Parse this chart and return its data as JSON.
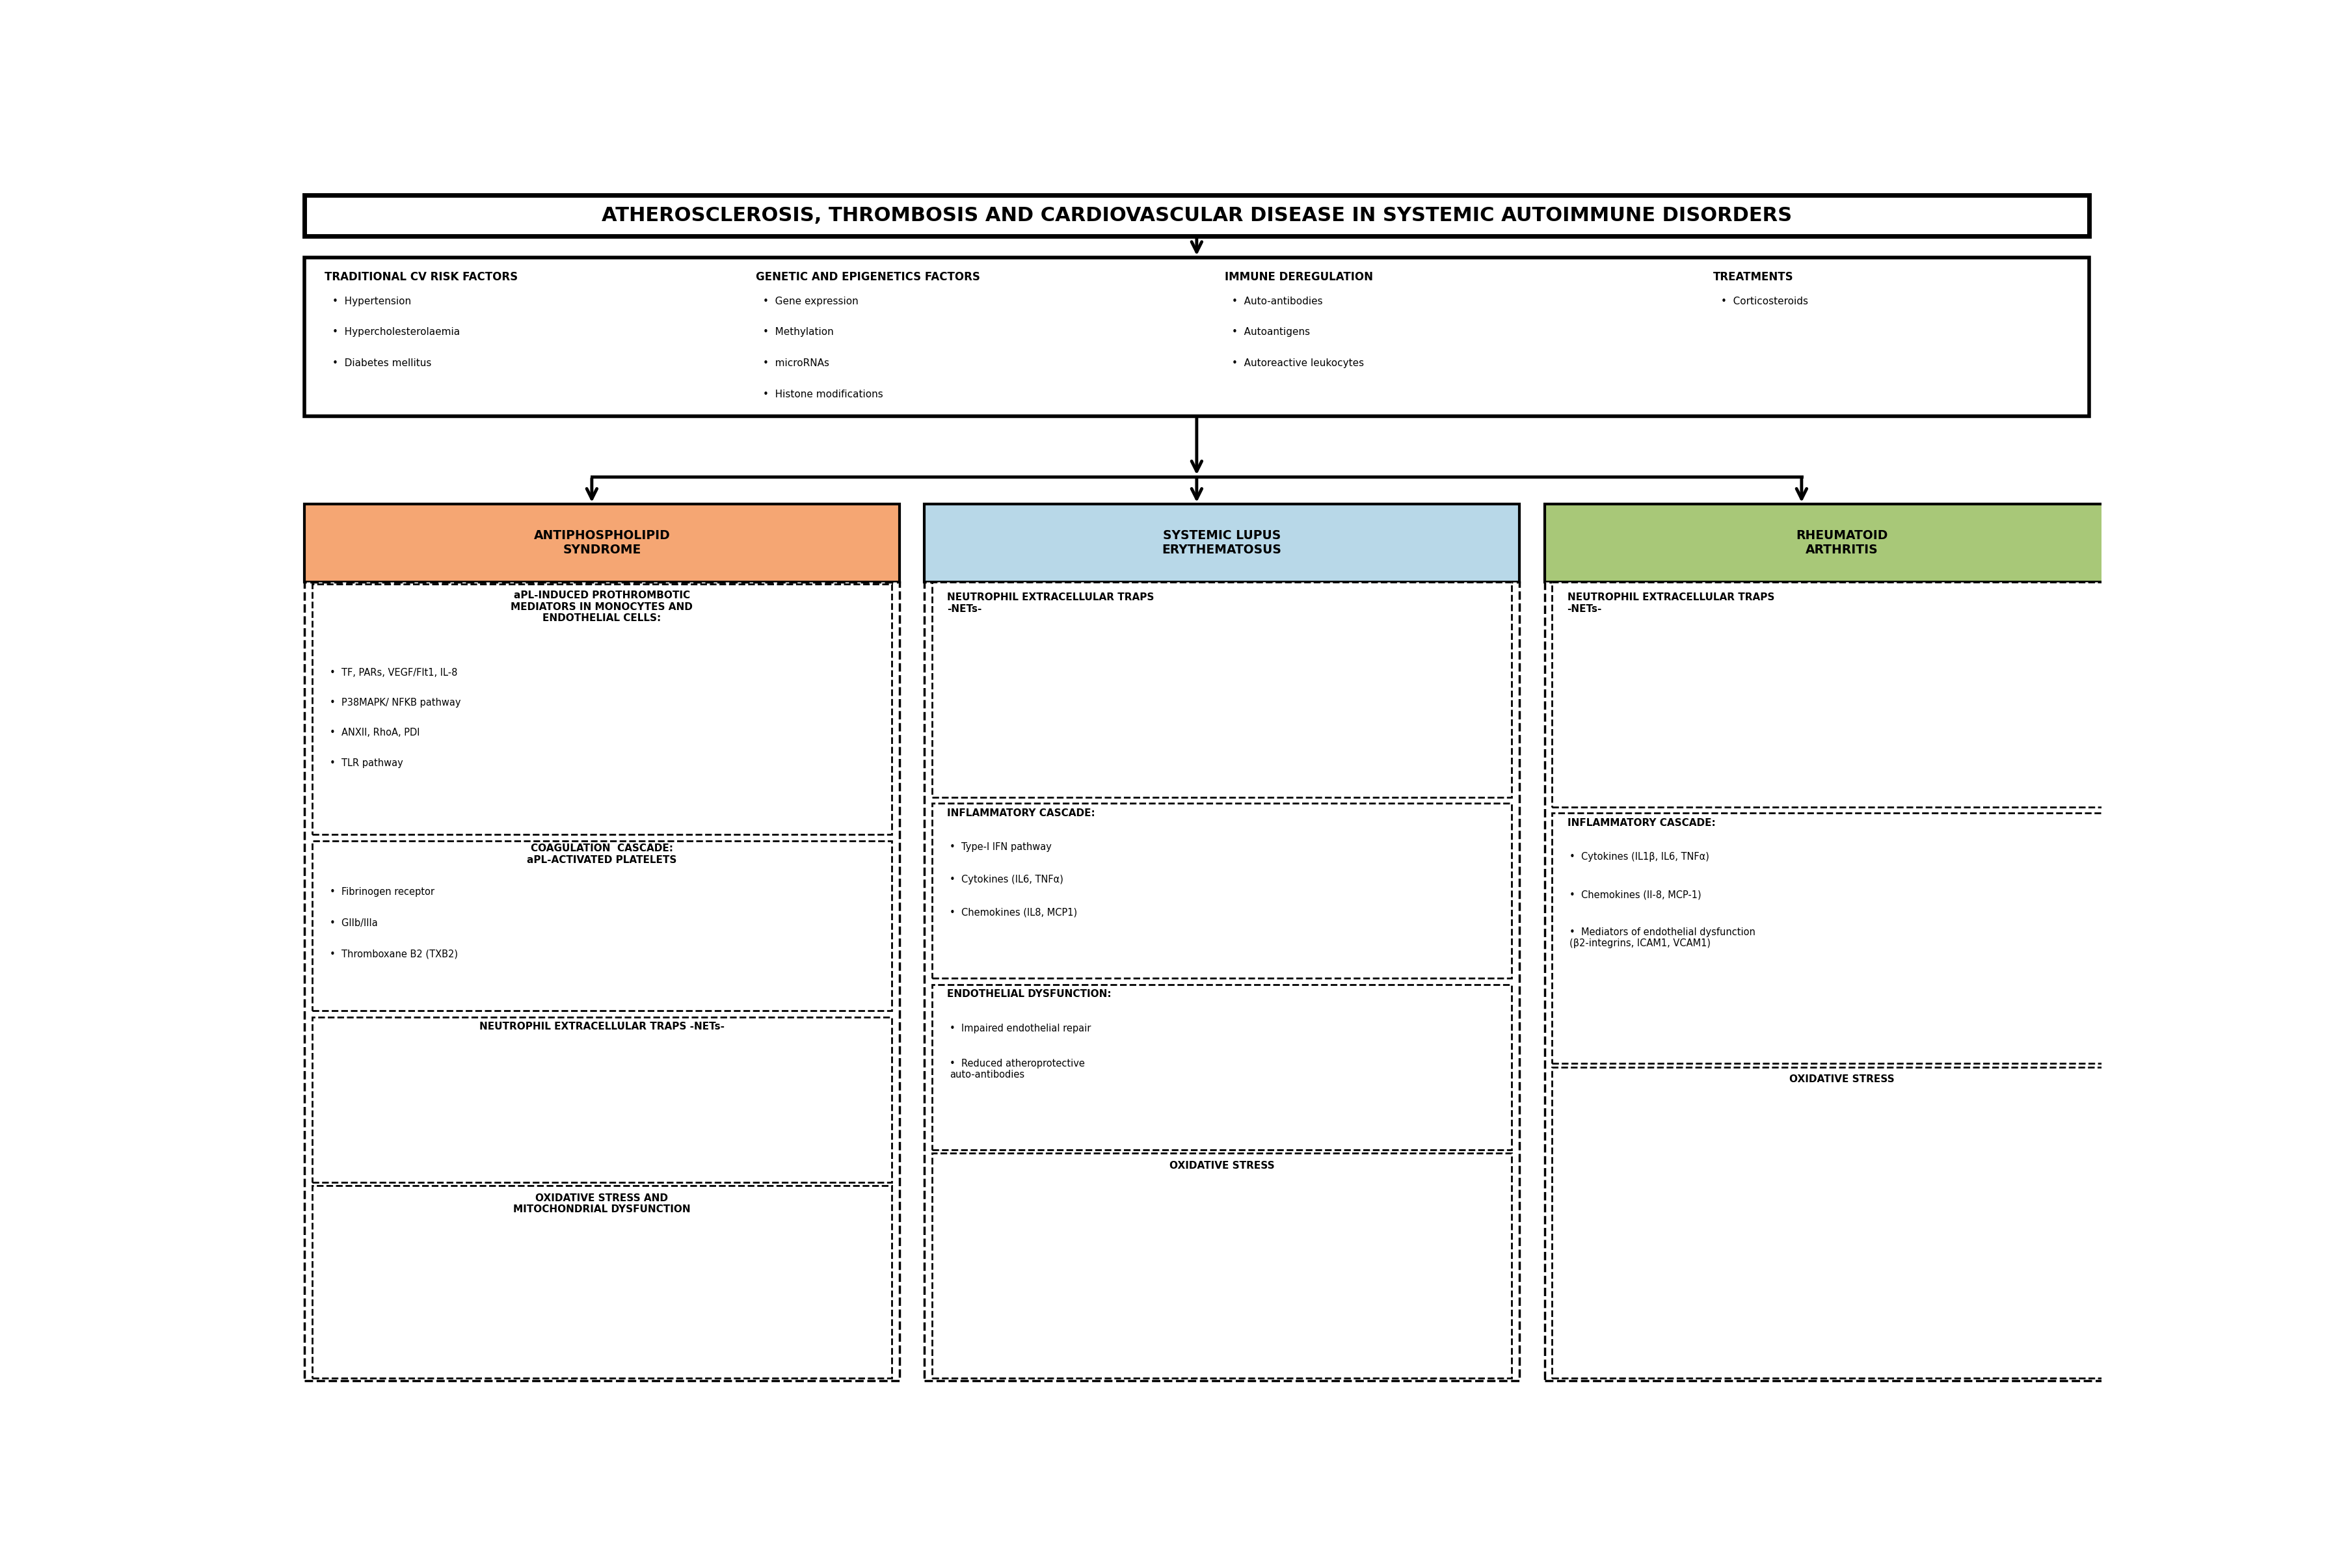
{
  "title": "ATHEROSCLEROSIS, THROMBOSIS AND CARDIOVASCULAR DISEASE IN SYSTEMIC AUTOIMMUNE DISORDERS",
  "bg_color": "#ffffff",
  "top_sections": [
    {
      "header": "TRADITIONAL CV RISK FACTORS",
      "items": [
        "Hypertension",
        "Hypercholesterolaemia",
        "Diabetes mellitus"
      ]
    },
    {
      "header": "GENETIC AND EPIGENETICS FACTORS",
      "items": [
        "Gene expression",
        "Methylation",
        "microRNAs",
        "Histone modifications"
      ]
    },
    {
      "header": "IMMUNE DEREGULATION",
      "items": [
        "Auto-antibodies",
        "Autoantigens",
        "Autoreactive leukocytes"
      ]
    },
    {
      "header": "TREATMENTS",
      "items": [
        "Corticosteroids"
      ]
    }
  ],
  "columns": [
    {
      "title": "ANTIPHOSPHOLIPID\nSYNDROME",
      "title_bg": "#F5A673",
      "boxes": [
        {
          "header": "aPL-INDUCED PROTHROMBOTIC\nMEDIATORS IN MONOCYTES AND\nENDOTHELIAL CELLS:",
          "items": [
            "TF, PARs, VEGF/Flt1, IL-8",
            "P38MAPK/ NFKB pathway",
            "ANXII, RhoA, PDI",
            "TLR pathway"
          ]
        },
        {
          "header": "COAGULATION  CASCADE:\naPL-ACTIVATED PLATELETS",
          "items": [
            "Fibrinogen receptor",
            "GIIb/IIIa",
            "Thromboxane B2 (TXB2)"
          ]
        },
        {
          "header": "NEUTROPHIL EXTRACELLULAR TRAPS -NETs-",
          "items": []
        },
        {
          "header": "OXIDATIVE STRESS AND\nMITOCHONDRIAL DYSFUNCTION",
          "items": []
        }
      ]
    },
    {
      "title": "SYSTEMIC LUPUS\nERYTHEMATOSUS",
      "title_bg": "#B8D8E8",
      "boxes": [
        {
          "header": "NEUTROPHIL EXTRACELLULAR TRAPS\n-NETs-",
          "items": []
        },
        {
          "header": "INFLAMMATORY CASCADE:",
          "items": [
            "Type-I IFN pathway",
            "Cytokines (IL6, TNFα)",
            "Chemokines (IL8, MCP1)"
          ]
        },
        {
          "header": "ENDOTHELIAL DYSFUNCTION:",
          "items": [
            "Impaired endothelial repair",
            "Reduced atheroprotective\nauto-antibodies"
          ]
        },
        {
          "header": "OXIDATIVE STRESS",
          "items": []
        }
      ]
    },
    {
      "title": "RHEUMATOID\nARTHRITIS",
      "title_bg": "#A8C878",
      "boxes": [
        {
          "header": "NEUTROPHIL EXTRACELLULAR TRAPS\n-NETs-",
          "items": []
        },
        {
          "header": "INFLAMMATORY CASCADE:",
          "items": [
            "Cytokines (IL1β, IL6, TNFα)",
            "Chemokines (Il-8, MCP-1)",
            "Mediators of endothelial dysfunction\n(β2-integrins, ICAM1, VCAM1)"
          ]
        },
        {
          "header": "OXIDATIVE STRESS",
          "items": []
        }
      ]
    }
  ]
}
